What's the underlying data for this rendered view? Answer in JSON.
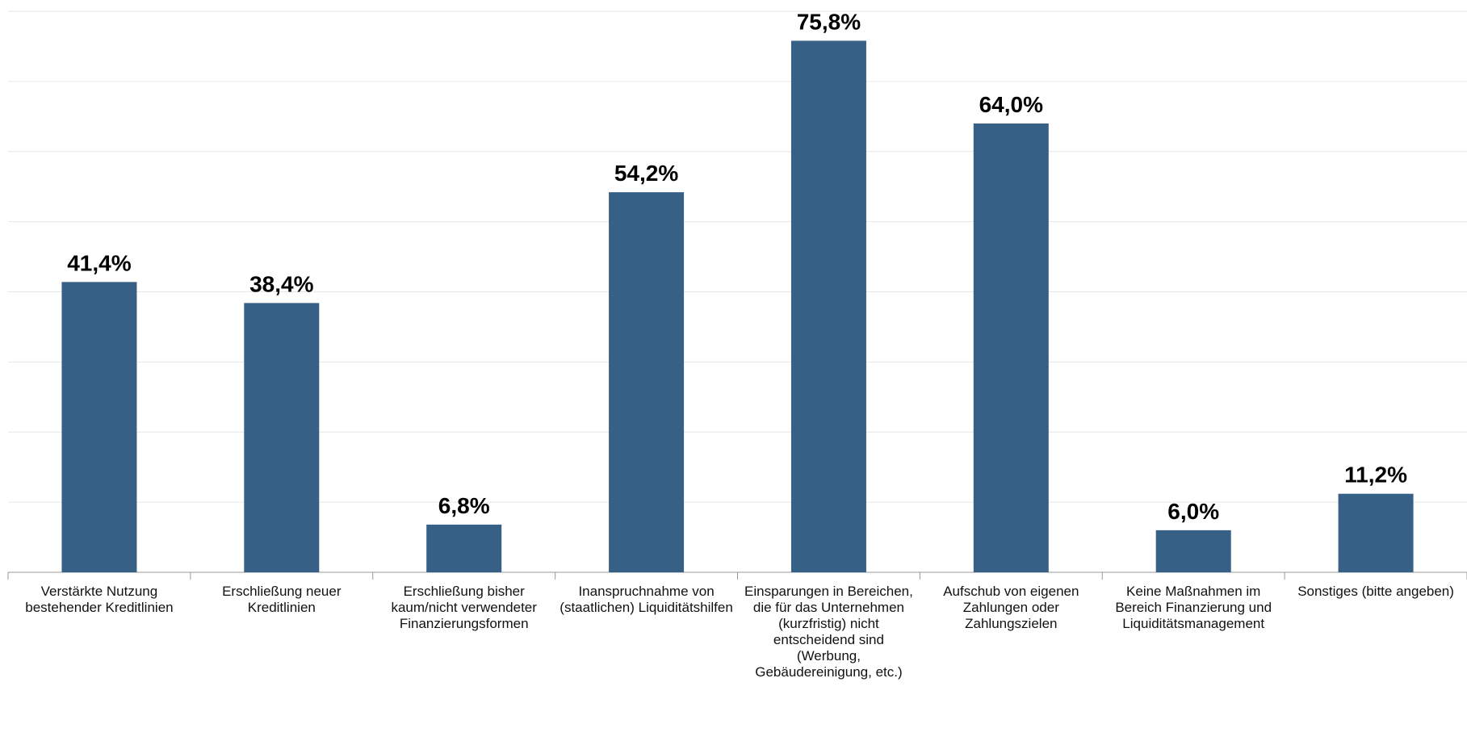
{
  "chart_data": {
    "type": "bar",
    "categories": [
      "Verstärkte Nutzung bestehender Kreditlinien",
      "Erschließung neuer Kreditlinien",
      "Erschließung bisher kaum/nicht verwendeter Finanzierungsformen",
      "Inanspruchnahme von (staatlichen) Liquiditätshilfen",
      "Einsparungen in Bereichen, die für das Unternehmen (kurzfristig) nicht entscheidend sind (Werbung, Gebäudereinigung, etc.)",
      "Aufschub von eigenen Zahlungen oder Zahlungszielen",
      "Keine Maßnahmen im Bereich Finanzierung und Liquiditätsmanagement",
      "Sonstiges (bitte angeben)"
    ],
    "values": [
      41.4,
      38.4,
      6.8,
      54.2,
      75.8,
      64.0,
      6.0,
      11.2
    ],
    "value_labels": [
      "41,4%",
      "38,4%",
      "6,8%",
      "54,2%",
      "75,8%",
      "64,0%",
      "6,0%",
      "11,2%"
    ],
    "color": "#376087",
    "ylim": [
      0,
      80
    ],
    "yticks": [
      0,
      10,
      20,
      30,
      40,
      50,
      60,
      70,
      80
    ],
    "grid": true
  }
}
